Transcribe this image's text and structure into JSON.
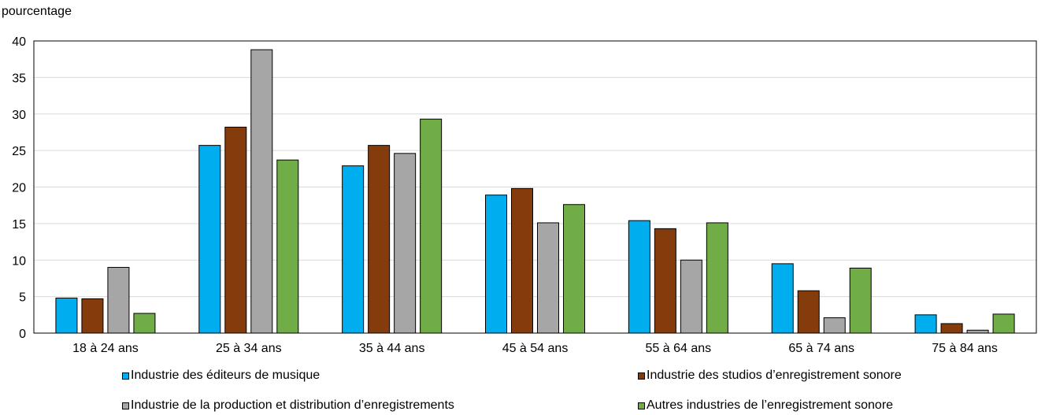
{
  "chart_data": {
    "type": "bar",
    "ylabel": "pourcentage",
    "ylim": [
      0,
      40
    ],
    "yticks": [
      0,
      5,
      10,
      15,
      20,
      25,
      30,
      35,
      40
    ],
    "grid": true,
    "legend_position": "bottom",
    "categories": [
      "18 à 24 ans",
      "25 à 34 ans",
      "35 à 44 ans",
      "45 à 54 ans",
      "55 à 64 ans",
      "65 à 74 ans",
      "75 à 84 ans"
    ],
    "series": [
      {
        "name": "Industrie des éditeurs de musique",
        "color": "#00aeef",
        "values": [
          4.8,
          25.7,
          22.9,
          18.9,
          15.4,
          9.5,
          2.5
        ]
      },
      {
        "name": "Industrie des studios d’enregistrement sonore",
        "color": "#843c0c",
        "values": [
          4.7,
          28.2,
          25.7,
          19.8,
          14.3,
          5.8,
          1.3
        ]
      },
      {
        "name": "Industrie de la production et distribution d’enregistrements",
        "color": "#a6a6a6",
        "values": [
          9.0,
          38.8,
          24.6,
          15.1,
          10.0,
          2.1,
          0.4
        ]
      },
      {
        "name": "Autres industries de l’enregistrement sonore",
        "color": "#70ad47",
        "values": [
          2.7,
          23.7,
          29.3,
          17.6,
          15.1,
          8.9,
          2.6
        ]
      }
    ]
  }
}
